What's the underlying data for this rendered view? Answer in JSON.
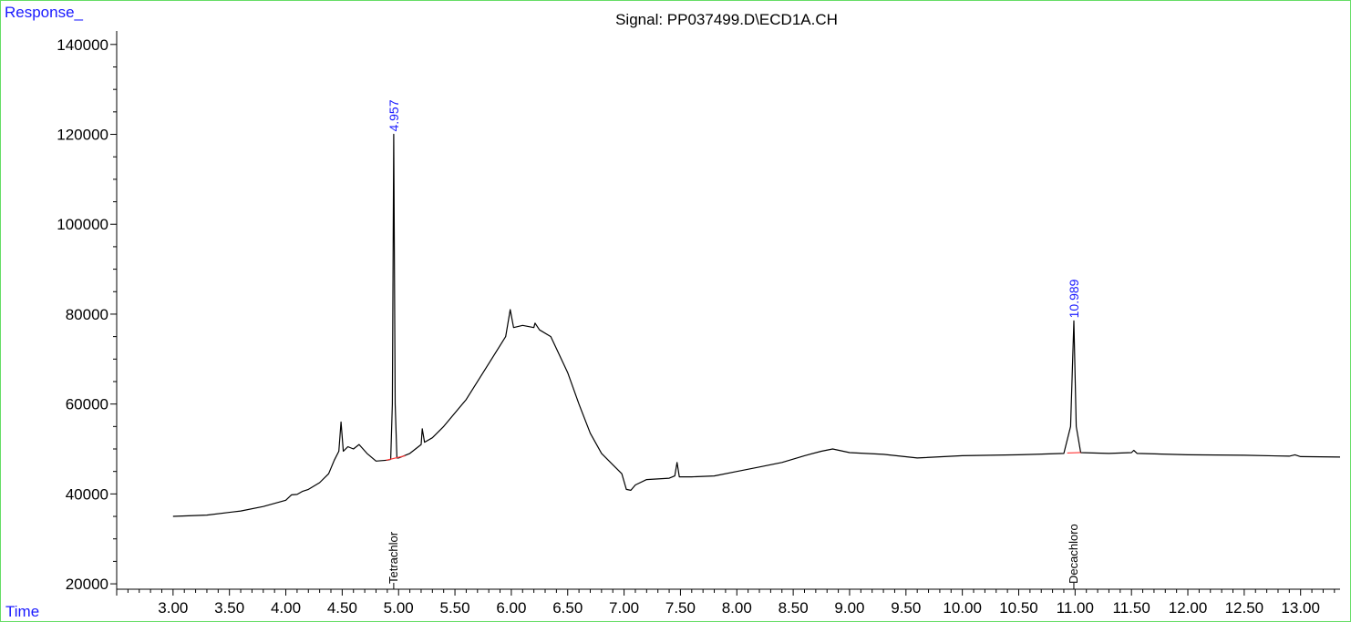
{
  "chart_data": {
    "type": "line",
    "title": "Signal: PP037499.D\\ECD1A.CH",
    "ylabel": "Response_",
    "xlabel": "Time",
    "xlim": [
      2.5,
      13.35
    ],
    "ylim": [
      18800,
      143000
    ],
    "x_ticks": [
      "3.00",
      "3.50",
      "4.00",
      "4.50",
      "5.00",
      "5.50",
      "6.00",
      "6.50",
      "7.00",
      "7.50",
      "8.00",
      "8.50",
      "9.00",
      "9.50",
      "10.00",
      "10.50",
      "11.00",
      "11.50",
      "12.00",
      "12.50",
      "13.00"
    ],
    "x_tick_values": [
      3.0,
      3.5,
      4.0,
      4.5,
      5.0,
      5.5,
      6.0,
      6.5,
      7.0,
      7.5,
      8.0,
      8.5,
      9.0,
      9.5,
      10.0,
      10.5,
      11.0,
      11.5,
      12.0,
      12.5,
      13.0
    ],
    "y_ticks": [
      "140000",
      "120000",
      "100000",
      "80000",
      "60000",
      "40000",
      "20000"
    ],
    "y_tick_values": [
      140000,
      120000,
      100000,
      80000,
      60000,
      40000,
      20000
    ],
    "colors": {
      "border": "#66dd66",
      "trace": "#000000",
      "baseline": "#ff3333",
      "accent": "#1a1aff"
    },
    "series": [
      {
        "points": [
          [
            3.0,
            35000
          ],
          [
            3.3,
            35300
          ],
          [
            3.6,
            36200
          ],
          [
            3.8,
            37200
          ],
          [
            4.0,
            38600
          ],
          [
            4.05,
            39800
          ],
          [
            4.1,
            39900
          ],
          [
            4.15,
            40600
          ],
          [
            4.2,
            41000
          ],
          [
            4.3,
            42500
          ],
          [
            4.38,
            44500
          ],
          [
            4.43,
            47500
          ],
          [
            4.47,
            49500
          ],
          [
            4.49,
            56000
          ],
          [
            4.51,
            49500
          ],
          [
            4.55,
            50500
          ],
          [
            4.6,
            50000
          ],
          [
            4.65,
            51000
          ],
          [
            4.72,
            49000
          ],
          [
            4.8,
            47300
          ],
          [
            4.9,
            47500
          ],
          [
            4.93,
            47700
          ],
          [
            4.945,
            60000
          ],
          [
            4.957,
            120000
          ],
          [
            4.97,
            60000
          ],
          [
            4.985,
            48000
          ],
          [
            5.0,
            48000
          ],
          [
            5.1,
            49000
          ],
          [
            5.2,
            51000
          ],
          [
            5.21,
            54500
          ],
          [
            5.23,
            51500
          ],
          [
            5.3,
            52500
          ],
          [
            5.4,
            55000
          ],
          [
            5.6,
            61000
          ],
          [
            5.8,
            69000
          ],
          [
            5.95,
            75000
          ],
          [
            5.99,
            81000
          ],
          [
            6.02,
            77000
          ],
          [
            6.1,
            77500
          ],
          [
            6.2,
            77000
          ],
          [
            6.21,
            78000
          ],
          [
            6.25,
            76500
          ],
          [
            6.35,
            75000
          ],
          [
            6.5,
            67000
          ],
          [
            6.6,
            60000
          ],
          [
            6.7,
            53500
          ],
          [
            6.8,
            49000
          ],
          [
            6.9,
            46500
          ],
          [
            6.98,
            44500
          ],
          [
            7.02,
            41000
          ],
          [
            7.06,
            40800
          ],
          [
            7.1,
            42000
          ],
          [
            7.2,
            43200
          ],
          [
            7.4,
            43500
          ],
          [
            7.45,
            44000
          ],
          [
            7.47,
            47000
          ],
          [
            7.49,
            43800
          ],
          [
            7.6,
            43800
          ],
          [
            7.8,
            44000
          ],
          [
            8.0,
            45000
          ],
          [
            8.2,
            46000
          ],
          [
            8.4,
            47000
          ],
          [
            8.6,
            48500
          ],
          [
            8.75,
            49500
          ],
          [
            8.85,
            50000
          ],
          [
            9.0,
            49200
          ],
          [
            9.3,
            48800
          ],
          [
            9.6,
            48000
          ],
          [
            10.0,
            48500
          ],
          [
            10.5,
            48700
          ],
          [
            10.9,
            49000
          ],
          [
            10.96,
            55000
          ],
          [
            10.989,
            78500
          ],
          [
            11.01,
            55000
          ],
          [
            11.05,
            49200
          ],
          [
            11.3,
            49000
          ],
          [
            11.5,
            49200
          ],
          [
            11.52,
            49700
          ],
          [
            11.55,
            49000
          ],
          [
            12.0,
            48700
          ],
          [
            12.5,
            48600
          ],
          [
            12.9,
            48400
          ],
          [
            12.95,
            48700
          ],
          [
            13.0,
            48300
          ],
          [
            13.35,
            48200
          ]
        ]
      }
    ],
    "baseline_segments": [
      {
        "x": [
          4.89,
          5.06
        ],
        "y": [
          47500,
          48500
        ]
      },
      {
        "x": [
          10.93,
          11.05
        ],
        "y": [
          49100,
          49200
        ]
      }
    ],
    "peaks": [
      {
        "rt": "4.957",
        "x": 4.957,
        "y": 120000,
        "name": "Tetrachlor"
      },
      {
        "rt": "10.989",
        "x": 10.989,
        "y": 78500,
        "name": "Decachloro"
      }
    ],
    "grid": false,
    "legend": "none"
  }
}
